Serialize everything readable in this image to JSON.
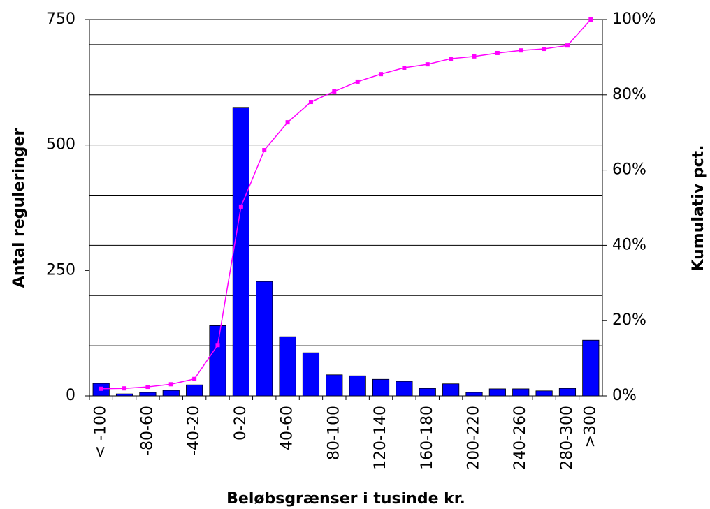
{
  "chart_data": {
    "type": "bar",
    "x_label": "Beløbsgrænser i tusinde kr.",
    "y_label": "Antal reguleringer",
    "y2_label": "Kumulativ pct.",
    "categories": [
      "< -100",
      null,
      "-80-60",
      null,
      "-40-20",
      null,
      "0-20",
      null,
      "40-60",
      null,
      "80-100",
      null,
      "120-140",
      null,
      "160-180",
      null,
      "200-220",
      null,
      "240-260",
      null,
      "280-300",
      ">300"
    ],
    "series": [
      {
        "type": "bar",
        "color": "#0000ff",
        "values": [
          25,
          4,
          7,
          11,
          22,
          140,
          575,
          228,
          118,
          86,
          42,
          40,
          33,
          29,
          15,
          24,
          7,
          14,
          14,
          10,
          15,
          111
        ]
      },
      {
        "type": "line",
        "axis": "y2",
        "color": "#ff00ff",
        "values": [
          1.9,
          2.0,
          2.4,
          3.1,
          4.5,
          13.5,
          50.3,
          65.3,
          72.7,
          78.1,
          80.9,
          83.5,
          85.5,
          87.2,
          88.1,
          89.6,
          90.2,
          91.1,
          91.8,
          92.2,
          93.1,
          100
        ]
      }
    ],
    "ylim": [
      0,
      750
    ],
    "yticks": [
      0,
      250,
      500,
      750
    ],
    "ygrid": [
      100,
      200,
      300,
      400,
      500,
      600,
      700,
      750
    ],
    "y2lim": [
      0,
      100
    ],
    "y2ticks": [
      {
        "value": 0,
        "label": "0%"
      },
      {
        "value": 20,
        "label": "20%"
      },
      {
        "value": 40,
        "label": "40%"
      },
      {
        "value": 60,
        "label": "60%"
      },
      {
        "value": 80,
        "label": "80%"
      },
      {
        "value": 100,
        "label": "100%"
      }
    ]
  }
}
